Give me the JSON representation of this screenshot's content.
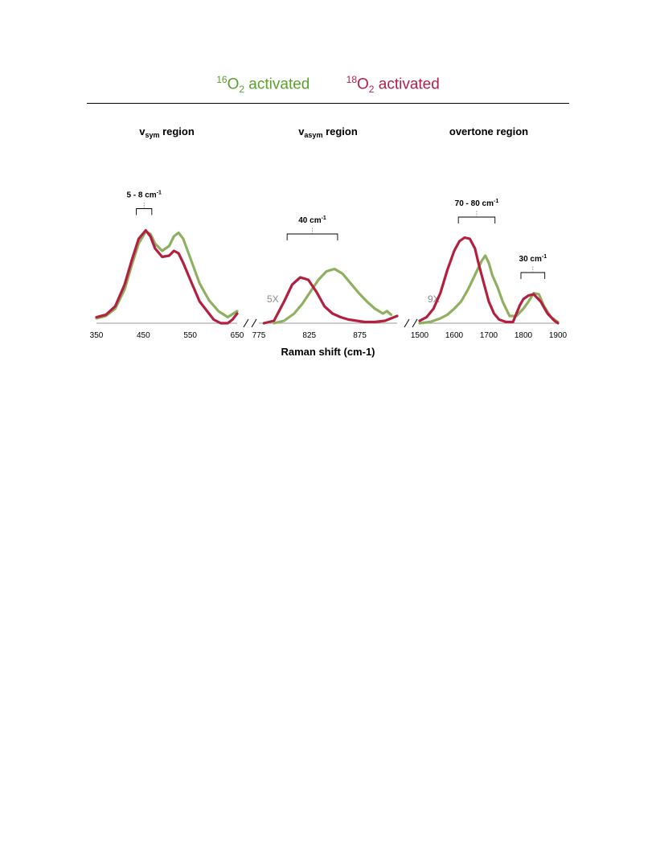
{
  "legend": [
    {
      "sup": "16",
      "base": "O",
      "sub": "2",
      "rest": " activated",
      "color": "#5aa02c"
    },
    {
      "sup": "18",
      "base": "O",
      "sub": "2",
      "rest": " activated",
      "color": "#b0204a"
    }
  ],
  "chart_data": {
    "type": "line",
    "xlabel": "Raman shift (cm-1)",
    "colors": {
      "o16": "#8fb060",
      "o18": "#b3203f"
    },
    "panels": [
      {
        "title": "v",
        "title_sub": "sym",
        "title_rest": " region",
        "xlim": [
          350,
          650
        ],
        "ticks": [
          350,
          450,
          550,
          650
        ],
        "multiplier": "",
        "annotations": [
          {
            "label": "5 - 8 cm",
            "sup": "-1",
            "x1": 435,
            "x2": 468,
            "y": 0.95
          }
        ],
        "series": [
          {
            "name": "16O2 activated",
            "key": "o16",
            "x": [
              350,
              370,
              390,
              410,
              425,
              440,
              455,
              465,
              475,
              490,
              505,
              515,
              525,
              535,
              550,
              570,
              590,
              610,
              630,
              650
            ],
            "y": [
              0.04,
              0.06,
              0.12,
              0.28,
              0.48,
              0.66,
              0.76,
              0.74,
              0.66,
              0.6,
              0.64,
              0.72,
              0.75,
              0.7,
              0.54,
              0.33,
              0.19,
              0.1,
              0.05,
              0.1
            ]
          },
          {
            "name": "18O2 activated",
            "key": "o18",
            "x": [
              350,
              370,
              390,
              410,
              425,
              440,
              455,
              465,
              475,
              490,
              505,
              515,
              525,
              535,
              550,
              570,
              590,
              600,
              615,
              630,
              640,
              650
            ],
            "y": [
              0.05,
              0.07,
              0.14,
              0.32,
              0.52,
              0.7,
              0.77,
              0.72,
              0.62,
              0.55,
              0.56,
              0.6,
              0.58,
              0.5,
              0.36,
              0.18,
              0.08,
              0.03,
              0.0,
              0.0,
              0.03,
              0.08
            ]
          }
        ]
      },
      {
        "title": "v",
        "title_sub": "asym",
        "title_rest": " region",
        "xlim": [
          775,
          912
        ],
        "ticks": [
          775,
          825,
          875
        ],
        "multiplier": "5X",
        "annotations": [
          {
            "label": "40 cm",
            "sup": "-1",
            "x1": 803,
            "x2": 853,
            "y": 0.74
          }
        ],
        "series": [
          {
            "name": "16O2 activated",
            "key": "o16",
            "x": [
              790,
              800,
              810,
              818,
              826,
              834,
              842,
              850,
              858,
              866,
              874,
              882,
              890,
              898,
              902,
              906
            ],
            "y": [
              0.0,
              0.02,
              0.08,
              0.16,
              0.26,
              0.36,
              0.43,
              0.45,
              0.41,
              0.33,
              0.25,
              0.18,
              0.12,
              0.08,
              0.1,
              0.07
            ]
          },
          {
            "name": "18O2 activated",
            "key": "o18",
            "x": [
              780,
              790,
              800,
              808,
              816,
              824,
              832,
              840,
              848,
              856,
              864,
              872,
              880,
              890,
              900,
              912
            ],
            "y": [
              0.0,
              0.02,
              0.18,
              0.32,
              0.38,
              0.36,
              0.26,
              0.14,
              0.08,
              0.05,
              0.03,
              0.02,
              0.01,
              0.01,
              0.02,
              0.06
            ]
          }
        ]
      },
      {
        "title": "overtone region",
        "title_sub": "",
        "title_rest": "",
        "xlim": [
          1500,
          1900
        ],
        "ticks": [
          1500,
          1600,
          1700,
          1800,
          1900
        ],
        "multiplier": "9X",
        "annotations": [
          {
            "label": "70 - 80 cm",
            "sup": "-1",
            "x1": 1612,
            "x2": 1718,
            "y": 0.88
          },
          {
            "label": "30 cm",
            "sup": "-1",
            "x1": 1793,
            "x2": 1862,
            "y": 0.42
          }
        ],
        "series": [
          {
            "name": "16O2 activated",
            "key": "o16",
            "x": [
              1500,
              1530,
              1560,
              1580,
              1600,
              1620,
              1640,
              1660,
              1680,
              1690,
              1700,
              1710,
              1725,
              1740,
              1760,
              1780,
              1800,
              1815,
              1830,
              1845,
              1860,
              1880,
              1900
            ],
            "y": [
              0.0,
              0.01,
              0.04,
              0.07,
              0.12,
              0.18,
              0.28,
              0.4,
              0.52,
              0.56,
              0.5,
              0.4,
              0.3,
              0.18,
              0.06,
              0.06,
              0.12,
              0.18,
              0.25,
              0.24,
              0.14,
              0.05,
              0.01
            ]
          },
          {
            "name": "18O2 activated",
            "key": "o18",
            "x": [
              1500,
              1520,
              1540,
              1560,
              1580,
              1600,
              1615,
              1630,
              1645,
              1660,
              1670,
              1685,
              1700,
              1715,
              1730,
              1750,
              1770,
              1790,
              1800,
              1815,
              1830,
              1850,
              1870,
              1890,
              1900
            ],
            "y": [
              0.02,
              0.05,
              0.12,
              0.25,
              0.44,
              0.6,
              0.68,
              0.71,
              0.7,
              0.62,
              0.5,
              0.34,
              0.18,
              0.08,
              0.03,
              0.01,
              0.01,
              0.15,
              0.2,
              0.23,
              0.24,
              0.18,
              0.08,
              0.02,
              0.0
            ]
          }
        ]
      }
    ]
  }
}
